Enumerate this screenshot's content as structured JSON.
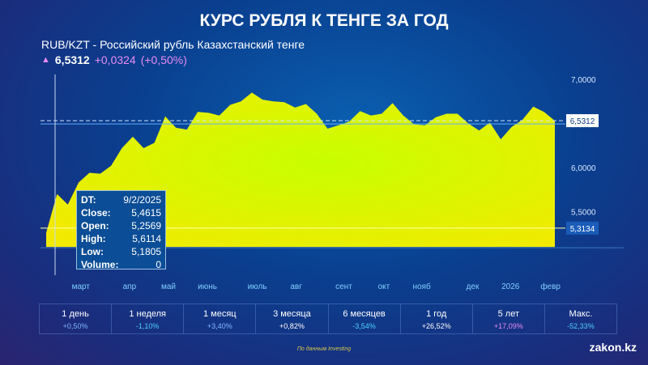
{
  "title": "КУРС РУБЛЯ К ТЕНГЕ ЗА ГОД",
  "subtitle": "RUB/KZT - Российский рубль Казахстанский тенге",
  "price": {
    "value": "6,5312",
    "change": "+0,0324",
    "change_pct": "(+0,50%)",
    "icon": "arrow-up-icon"
  },
  "tooltip": [
    {
      "k": "DT:",
      "v": "9/2/2025"
    },
    {
      "k": "Close:",
      "v": "5,4615"
    },
    {
      "k": "Open:",
      "v": "5,2569"
    },
    {
      "k": "High:",
      "v": "5,6114"
    },
    {
      "k": "Low:",
      "v": "5,1805"
    },
    {
      "k": "Volume:",
      "v": "0"
    }
  ],
  "stats": [
    {
      "label": "1 день",
      "pct": "+0,50%",
      "color": "#7fb8ff"
    },
    {
      "label": "1 неделя",
      "pct": "-1,10%",
      "color": "#4fd0ff"
    },
    {
      "label": "1 месяц",
      "pct": "+3,40%",
      "color": "#7fb8ff"
    },
    {
      "label": "3 месяца",
      "pct": "+0,82%",
      "color": "#ffffff"
    },
    {
      "label": "6 месяцев",
      "pct": "-3,54%",
      "color": "#4fd0ff"
    },
    {
      "label": "1 год",
      "pct": "+26,52%",
      "color": "#ffffff"
    },
    {
      "label": "5 лет",
      "pct": "+17,09%",
      "color": "#e58cf2"
    },
    {
      "label": "Макс.",
      "pct": "-52,33%",
      "color": "#4fd0ff"
    }
  ],
  "source": "По данным Investing",
  "logo": "zakon.kz",
  "chart_data": {
    "type": "area",
    "title": "КУРС РУБЛЯ К ТЕНГЕ ЗА ГОД",
    "values": [
      5.26,
      5.7,
      5.58,
      5.83,
      5.94,
      5.93,
      6.02,
      6.22,
      6.35,
      6.22,
      6.28,
      6.58,
      6.45,
      6.43,
      6.63,
      6.62,
      6.59,
      6.71,
      6.75,
      6.85,
      6.77,
      6.75,
      6.74,
      6.68,
      6.72,
      6.61,
      6.44,
      6.48,
      6.52,
      6.64,
      6.59,
      6.61,
      6.73,
      6.59,
      6.49,
      6.48,
      6.57,
      6.61,
      6.61,
      6.5,
      6.42,
      6.51,
      6.32,
      6.46,
      6.54,
      6.69,
      6.63,
      6.53
    ],
    "baseline": 5.1,
    "ylim": [
      5.1,
      7.0
    ],
    "yticks": [
      "7,0000",
      "6,0000",
      "5,5000"
    ],
    "ytick_values": [
      7.0,
      6.0,
      5.5
    ],
    "xticks": [
      {
        "label": "март",
        "i": 3.2
      },
      {
        "label": "апр",
        "i": 7.7
      },
      {
        "label": "май",
        "i": 11.3
      },
      {
        "label": "июнь",
        "i": 14.9
      },
      {
        "label": "июль",
        "i": 19.5
      },
      {
        "label": "авг",
        "i": 23.1
      },
      {
        "label": "сент",
        "i": 27.5
      },
      {
        "label": "окт",
        "i": 31.2
      },
      {
        "label": "нояб",
        "i": 34.7
      },
      {
        "label": "дек",
        "i": 39.4
      },
      {
        "label": "2026",
        "i": 42.9
      },
      {
        "label": "февр",
        "i": 46.6
      }
    ],
    "current": {
      "value": 6.5312,
      "label": "6,5312"
    },
    "crosshair": {
      "value": 5.3134,
      "label": "5,3134",
      "i": 0.8
    },
    "fill_color": "#f2ea00",
    "fill_center": "#c8ff00"
  }
}
